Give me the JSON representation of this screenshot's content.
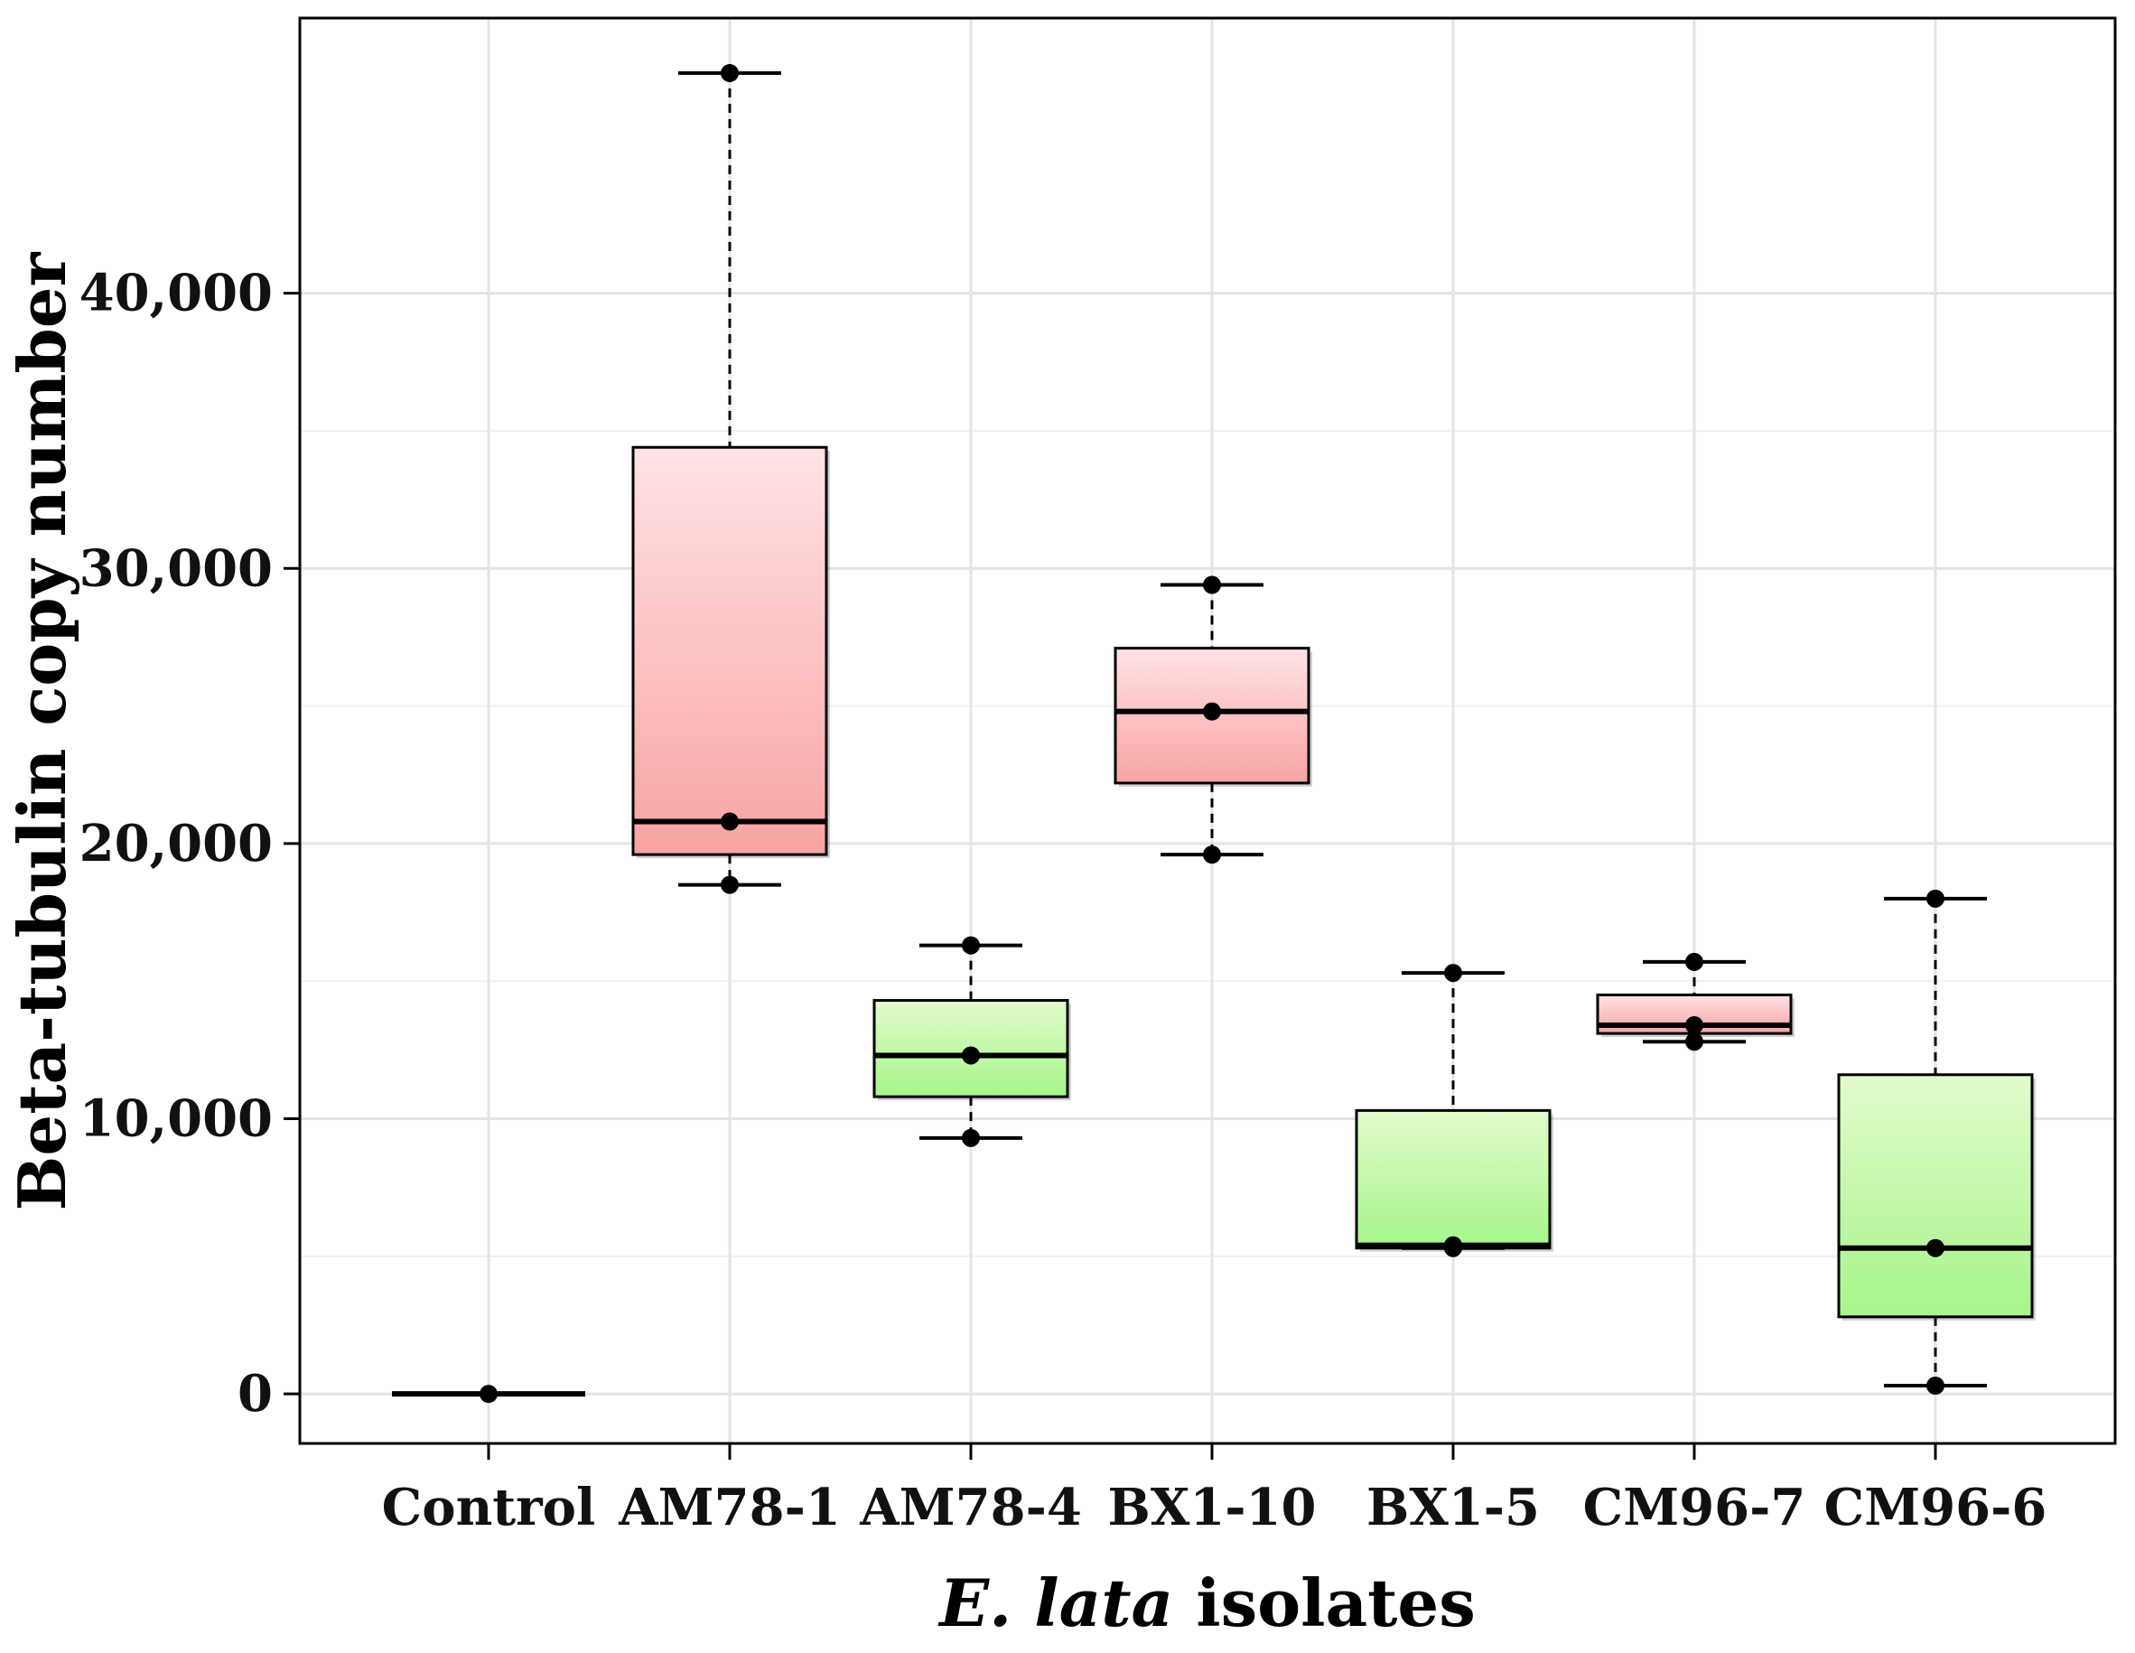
{
  "chart_data": {
    "type": "boxplot",
    "title": "",
    "xlabel_italic": "E. lata",
    "xlabel_rest": " isolates",
    "ylabel": "Beta-tubulin copy number",
    "ylim": [
      -1800,
      50000
    ],
    "yticks": [
      0,
      10000,
      20000,
      30000,
      40000
    ],
    "ytick_labels": [
      "0",
      "10,000",
      "20,000",
      "30,000",
      "40,000"
    ],
    "grid": true,
    "categories": [
      "Control",
      "AM78-1",
      "AM78-4",
      "BX1-10",
      "BX1-5",
      "CM96-7",
      "CM96-6"
    ],
    "boxes": [
      {
        "name": "Control",
        "whisker_low": 0,
        "q1": 0,
        "median": 0,
        "q3": 0,
        "whisker_high": 0,
        "points": [
          0
        ],
        "color": "none"
      },
      {
        "name": "AM78-1",
        "whisker_low": 18500,
        "q1": 19600,
        "median": 20800,
        "q3": 34400,
        "whisker_high": 48000,
        "points": [
          18500,
          20800,
          48000
        ],
        "color": "red"
      },
      {
        "name": "AM78-4",
        "whisker_low": 9300,
        "q1": 10800,
        "median": 12300,
        "q3": 14300,
        "whisker_high": 16300,
        "points": [
          9300,
          12300,
          16300
        ],
        "color": "green"
      },
      {
        "name": "BX1-10",
        "whisker_low": 19600,
        "q1": 22200,
        "median": 24800,
        "q3": 27100,
        "whisker_high": 29400,
        "points": [
          19600,
          24800,
          29400
        ],
        "color": "red"
      },
      {
        "name": "BX1-5",
        "whisker_low": 5300,
        "q1": 5300,
        "median": 5400,
        "q3": 10300,
        "whisker_high": 15300,
        "points": [
          5300,
          5400,
          15300
        ],
        "color": "green"
      },
      {
        "name": "CM96-7",
        "whisker_low": 12800,
        "q1": 13100,
        "median": 13400,
        "q3": 14500,
        "whisker_high": 15700,
        "points": [
          12800,
          13400,
          15700
        ],
        "color": "red"
      },
      {
        "name": "CM96-6",
        "whisker_low": 300,
        "q1": 2800,
        "median": 5300,
        "q3": 11600,
        "whisker_high": 18000,
        "points": [
          300,
          5300,
          18000
        ],
        "color": "green"
      }
    ],
    "colors": {
      "red_top": "#ffe3e6",
      "red_bottom": "#f9a3a3",
      "green_top": "#e2fbcc",
      "green_bottom": "#a6f58a",
      "grid": "#e4e4e4",
      "frame": "#000000"
    }
  }
}
